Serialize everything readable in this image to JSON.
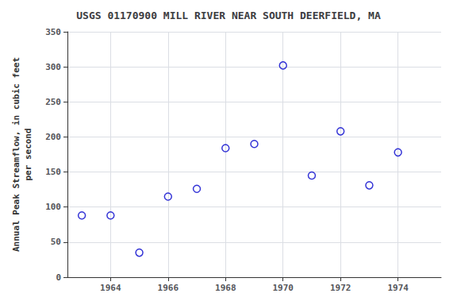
{
  "chart_data": {
    "type": "scatter",
    "title": "USGS 01170900 MILL RIVER NEAR SOUTH DEERFIELD, MA",
    "ylabel": "Annual Peak Streamflow, in cubic feet\nper second",
    "x": [
      1963,
      1964,
      1965,
      1966,
      1967,
      1968,
      1969,
      1970,
      1971,
      1972,
      1973,
      1974
    ],
    "values": [
      88,
      88,
      35,
      115,
      126,
      184,
      190,
      302,
      145,
      208,
      131,
      178
    ],
    "xlim": [
      1962.5,
      1975.5
    ],
    "xticks": [
      1964,
      1966,
      1968,
      1970,
      1972,
      1974
    ],
    "ylim": [
      0,
      350
    ],
    "yticks": [
      0,
      50,
      100,
      150,
      200,
      250,
      300,
      350
    ],
    "color": "#0000cc",
    "marker": "open_circle",
    "grid": true
  }
}
